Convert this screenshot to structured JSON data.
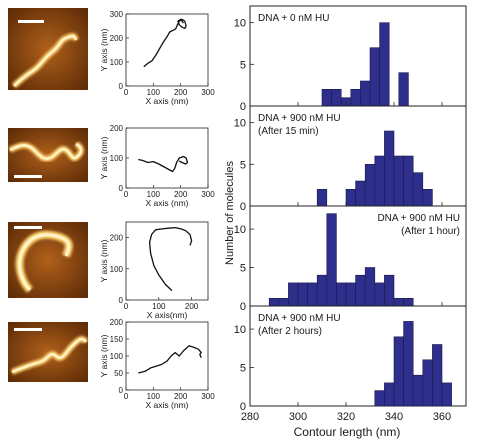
{
  "colors": {
    "bar_fill": "#2e2e8c",
    "bar_stroke": "#1a1a4a",
    "afm_dark": "#5a2a06",
    "afm_mid": "#9a4c10",
    "afm_bright": "#ffe8a0",
    "scale_bar": "#ffffff"
  },
  "rows": [
    {
      "panel_label": "DNA + 0 nM HU",
      "panel_sublabel": "",
      "label_align": "left"
    },
    {
      "panel_label": "DNA + 900 nM HU",
      "panel_sublabel": "(After 15 min)",
      "label_align": "left"
    },
    {
      "panel_label": "DNA + 900 nM HU",
      "panel_sublabel": "(After 1 hour)",
      "label_align": "right"
    },
    {
      "panel_label": "DNA + 900 nM HU",
      "panel_sublabel": "(After 2 hours)",
      "label_align": "left"
    }
  ],
  "trace_axes": [
    {
      "xlabel": "X axis (nm)",
      "ylabel": "Y axis (nm)",
      "xticks": [
        "0",
        "100",
        "200",
        "300"
      ],
      "yticks": [
        "0",
        "100",
        "200",
        "300"
      ]
    },
    {
      "xlabel": "X axis (nm)",
      "ylabel": "Y axis (nm)",
      "xticks": [
        "0",
        "100",
        "200",
        "300"
      ],
      "yticks": [
        "0",
        "100",
        "200"
      ]
    },
    {
      "xlabel": "X axis(nm)",
      "ylabel": "Y axis (nm)",
      "xticks": [
        "0",
        "100",
        "200"
      ],
      "yticks": [
        "0",
        "100",
        "200"
      ]
    },
    {
      "xlabel": "X axis (nm)",
      "ylabel": "Y axis (nm)",
      "xticks": [
        "0",
        "100",
        "200",
        "300"
      ],
      "yticks": [
        "0",
        "50",
        "100",
        "150",
        "200"
      ]
    }
  ],
  "chart_data": [
    {
      "type": "line",
      "panel": "DNA trace 1",
      "xlabel": "X axis (nm)",
      "ylabel": "Y axis (nm)",
      "xlim": [
        0,
        300
      ],
      "ylim": [
        0,
        300
      ],
      "x": [
        65,
        80,
        95,
        110,
        120,
        135,
        150,
        160,
        172,
        182,
        188,
        195,
        205,
        215,
        220,
        215,
        205,
        195,
        190,
        200,
        210
      ],
      "y": [
        80,
        95,
        105,
        130,
        150,
        180,
        205,
        225,
        232,
        238,
        255,
        270,
        278,
        270,
        250,
        240,
        245,
        255,
        270,
        278,
        262
      ]
    },
    {
      "type": "line",
      "panel": "DNA trace 2",
      "xlabel": "X axis (nm)",
      "ylabel": "Y axis (nm)",
      "xlim": [
        0,
        300
      ],
      "ylim": [
        0,
        200
      ],
      "x": [
        45,
        60,
        80,
        100,
        120,
        140,
        160,
        170,
        178,
        185,
        195,
        210,
        220,
        225,
        218,
        205,
        195
      ],
      "y": [
        95,
        92,
        85,
        88,
        80,
        70,
        60,
        55,
        65,
        85,
        100,
        105,
        100,
        85,
        80,
        85,
        90
      ]
    },
    {
      "type": "line",
      "panel": "DNA trace 3",
      "xlabel": "X axis(nm)",
      "ylabel": "Y axis (nm)",
      "xlim": [
        0,
        250
      ],
      "ylim": [
        0,
        250
      ],
      "x": [
        140,
        120,
        100,
        85,
        75,
        72,
        78,
        90,
        110,
        130,
        150,
        168,
        182,
        195,
        200,
        195
      ],
      "y": [
        30,
        50,
        80,
        110,
        150,
        185,
        210,
        225,
        228,
        230,
        232,
        228,
        222,
        210,
        190,
        175
      ]
    },
    {
      "type": "line",
      "panel": "DNA trace 4",
      "xlabel": "X axis (nm)",
      "ylabel": "Y axis (nm)",
      "xlim": [
        0,
        300
      ],
      "ylim": [
        0,
        200
      ],
      "x": [
        45,
        70,
        90,
        110,
        130,
        150,
        165,
        180,
        195,
        210,
        230,
        250,
        265,
        275,
        270,
        275
      ],
      "y": [
        50,
        55,
        65,
        70,
        75,
        85,
        100,
        110,
        100,
        115,
        130,
        125,
        120,
        110,
        105,
        95
      ]
    },
    {
      "type": "bar",
      "panel": "DNA + 0 nM HU",
      "x": [
        312,
        316,
        320,
        324,
        328,
        332,
        336,
        340,
        344
      ],
      "values": [
        2,
        2,
        1,
        2,
        3,
        7,
        10,
        0,
        4
      ],
      "ylim": [
        0,
        12
      ],
      "xlim": [
        280,
        370
      ],
      "yticks": [
        "0",
        "5",
        "10"
      ]
    },
    {
      "type": "bar",
      "panel": "DNA + 900 nM HU (After 15 min)",
      "x": [
        310,
        314,
        318,
        322,
        326,
        330,
        334,
        338,
        342,
        346,
        350,
        354
      ],
      "values": [
        2,
        0,
        0,
        2,
        3,
        5,
        6,
        9,
        6,
        6,
        4,
        2
      ],
      "ylim": [
        0,
        12
      ],
      "xlim": [
        280,
        370
      ],
      "yticks": [
        "0",
        "5",
        "10"
      ]
    },
    {
      "type": "bar",
      "panel": "DNA + 900 nM HU (After 1 hour)",
      "x": [
        290,
        294,
        298,
        302,
        306,
        310,
        314,
        318,
        322,
        326,
        330,
        334,
        338,
        342,
        346
      ],
      "values": [
        1,
        1,
        3,
        3,
        3,
        4,
        12,
        3,
        3,
        4,
        5,
        3,
        4,
        1,
        1
      ],
      "ylim": [
        0,
        13
      ],
      "xlim": [
        280,
        370
      ],
      "yticks": [
        "0",
        "5",
        "10"
      ]
    },
    {
      "type": "bar",
      "panel": "DNA + 900 nM HU (After 2 hours)",
      "x": [
        334,
        338,
        342,
        346,
        350,
        354,
        358,
        362
      ],
      "values": [
        2,
        3,
        9,
        11,
        4,
        6,
        8,
        3
      ],
      "ylim": [
        0,
        13
      ],
      "xlim": [
        280,
        370
      ],
      "yticks": [
        "0",
        "5",
        "10"
      ]
    }
  ],
  "hist_axes": {
    "ylabel": "Number of molecules",
    "xlabel": "Contour length (nm)",
    "xticks": [
      "280",
      "300",
      "320",
      "340",
      "360"
    ]
  }
}
